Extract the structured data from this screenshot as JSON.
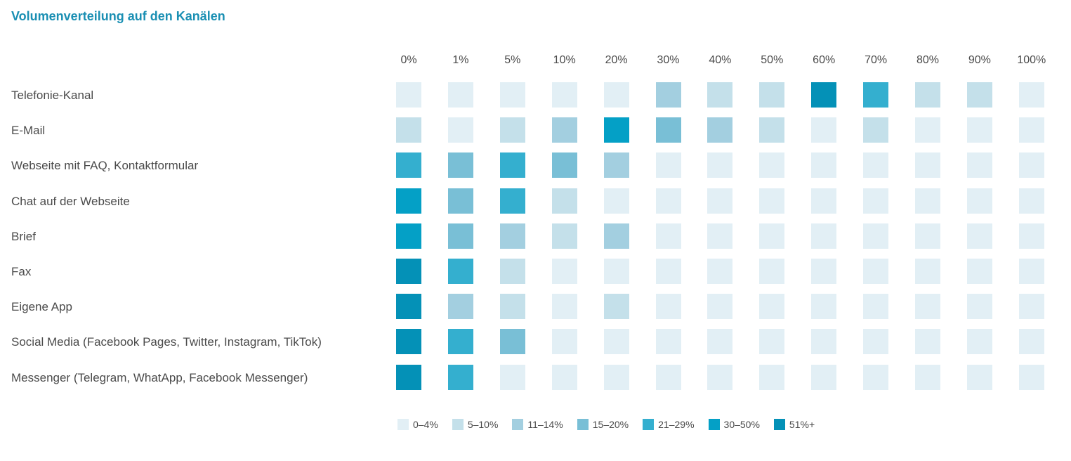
{
  "chart_data": {
    "type": "heatmap",
    "title": "Volumenverteilung auf den Kanälen",
    "columns": [
      "0%",
      "1%",
      "5%",
      "10%",
      "20%",
      "30%",
      "40%",
      "50%",
      "60%",
      "70%",
      "80%",
      "90%",
      "100%"
    ],
    "rows": [
      "Telefonie-Kanal",
      "E-Mail",
      "Webseite mit FAQ, Kontaktformular",
      "Chat auf der Webseite",
      "Brief",
      "Fax",
      "Eigene App",
      "Social Media (Facebook Pages, Twitter, Instagram, TikTok)",
      "Messenger (Telegram, WhatApp, Facebook Messenger)"
    ],
    "legend": [
      {
        "label": "0–4%",
        "color": "#e2eff5"
      },
      {
        "label": "5–10%",
        "color": "#c4e0ea"
      },
      {
        "label": "11–14%",
        "color": "#a3cfe0"
      },
      {
        "label": "15–20%",
        "color": "#79bfd6"
      },
      {
        "label": "21–29%",
        "color": "#34afcf"
      },
      {
        "label": "30–50%",
        "color": "#04a0c6"
      },
      {
        "label": "51%+",
        "color": "#0491b7"
      }
    ],
    "values": [
      [
        0,
        0,
        0,
        0,
        0,
        2,
        1,
        1,
        6,
        4,
        1,
        1,
        0
      ],
      [
        1,
        0,
        1,
        2,
        5,
        3,
        2,
        1,
        0,
        1,
        0,
        0,
        0
      ],
      [
        4,
        3,
        4,
        3,
        2,
        0,
        0,
        0,
        0,
        0,
        0,
        0,
        0
      ],
      [
        5,
        3,
        4,
        1,
        0,
        0,
        0,
        0,
        0,
        0,
        0,
        0,
        0
      ],
      [
        5,
        3,
        2,
        1,
        2,
        0,
        0,
        0,
        0,
        0,
        0,
        0,
        0
      ],
      [
        6,
        4,
        1,
        0,
        0,
        0,
        0,
        0,
        0,
        0,
        0,
        0,
        0
      ],
      [
        6,
        2,
        1,
        0,
        1,
        0,
        0,
        0,
        0,
        0,
        0,
        0,
        0
      ],
      [
        6,
        4,
        3,
        0,
        0,
        0,
        0,
        0,
        0,
        0,
        0,
        0,
        0
      ],
      [
        6,
        4,
        0,
        0,
        0,
        0,
        0,
        0,
        0,
        0,
        0,
        0,
        0
      ]
    ]
  }
}
